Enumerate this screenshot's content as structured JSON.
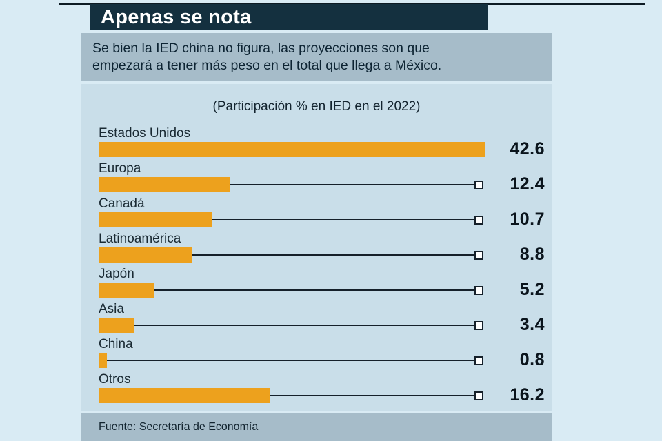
{
  "page": {
    "title": "Apenas se nota",
    "subtitle": {
      "line1": "Se bien la IED china no figura, las proyecciones son que",
      "line2": "empezará a tener más peso en el total que llega a México."
    },
    "source": "Fuente: Secretaría de Economía"
  },
  "chart_data": {
    "type": "bar",
    "orientation": "horizontal",
    "title": "(Participación % en IED en el 2022)",
    "categories": [
      "Estados Unidos",
      "Europa",
      "Canadá",
      "Latinoamérica",
      "Japón",
      "Asia",
      "China",
      "Otros"
    ],
    "values": [
      42.6,
      12.4,
      10.7,
      8.8,
      5.2,
      3.4,
      0.8,
      16.2
    ],
    "value_unit": "%",
    "xlim": [
      0,
      42.6
    ],
    "legend": "none",
    "grid": "off",
    "bar_color": "#EDA11D",
    "marker_style": "white square at right end of scale for every bar except the longest",
    "note": "value labels shown bold at right of each bar row"
  },
  "colors": {
    "page_background": "#D9EBF4",
    "title_bar_background": "#14303F",
    "title_text": "#FFFFFF",
    "subtitle_background": "#A6BCC9",
    "chart_panel_background": "#C9DEE9",
    "footer_background": "#A6BCC9",
    "bar": "#EDA11D",
    "connector_line": "#15202A",
    "text_dark": "#0D2433"
  }
}
